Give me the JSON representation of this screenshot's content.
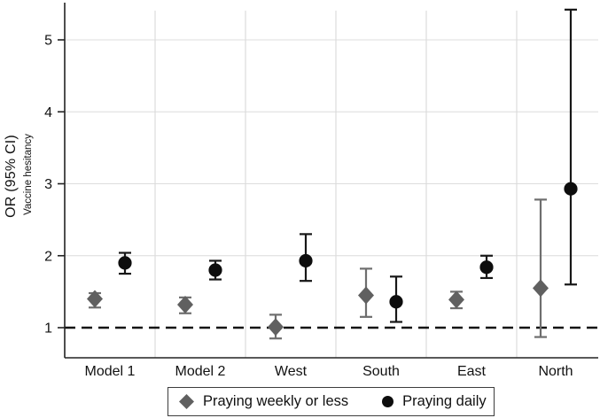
{
  "chart_data": {
    "type": "scatter",
    "subtype": "forest-plot-odds-ratios",
    "title": "",
    "xlabel": "",
    "ylabel": "OR (95% CI)",
    "ylabel_sub": "Vaccine hesitancy",
    "categories": [
      "Model 1",
      "Model 2",
      "West",
      "South",
      "East",
      "North"
    ],
    "yticks": [
      1,
      2,
      3,
      4,
      5
    ],
    "ylim": [
      0.58,
      5.5
    ],
    "reference_line": 1,
    "grid": "light horizontal gridlines at integer ticks; light vertical separators between category groups",
    "legend_position": "bottom",
    "colors": {
      "axis": "#222222",
      "grid": "#dcdcdc",
      "reference_line": "#141414",
      "tick_text": "#111111"
    },
    "series": [
      {
        "name": "Praying weekly or less",
        "marker": "diamond",
        "color": "#606060",
        "whisker_color": "#6e6e6e",
        "values": [
          {
            "or": 1.4,
            "lo": 1.28,
            "hi": 1.48
          },
          {
            "or": 1.32,
            "lo": 1.2,
            "hi": 1.42
          },
          {
            "or": 1.01,
            "lo": 0.85,
            "hi": 1.18
          },
          {
            "or": 1.45,
            "lo": 1.15,
            "hi": 1.82
          },
          {
            "or": 1.39,
            "lo": 1.27,
            "hi": 1.5
          },
          {
            "or": 1.55,
            "lo": 0.87,
            "hi": 2.78
          }
        ]
      },
      {
        "name": "Praying daily",
        "marker": "circle",
        "color": "#0d0d0d",
        "whisker_color": "#171717",
        "values": [
          {
            "or": 1.9,
            "lo": 1.75,
            "hi": 2.04
          },
          {
            "or": 1.8,
            "lo": 1.67,
            "hi": 1.93
          },
          {
            "or": 1.93,
            "lo": 1.65,
            "hi": 2.3
          },
          {
            "or": 1.36,
            "lo": 1.08,
            "hi": 1.71
          },
          {
            "or": 1.84,
            "lo": 1.69,
            "hi": 2.0
          },
          {
            "or": 2.93,
            "lo": 1.6,
            "hi": 5.42
          }
        ]
      }
    ]
  }
}
